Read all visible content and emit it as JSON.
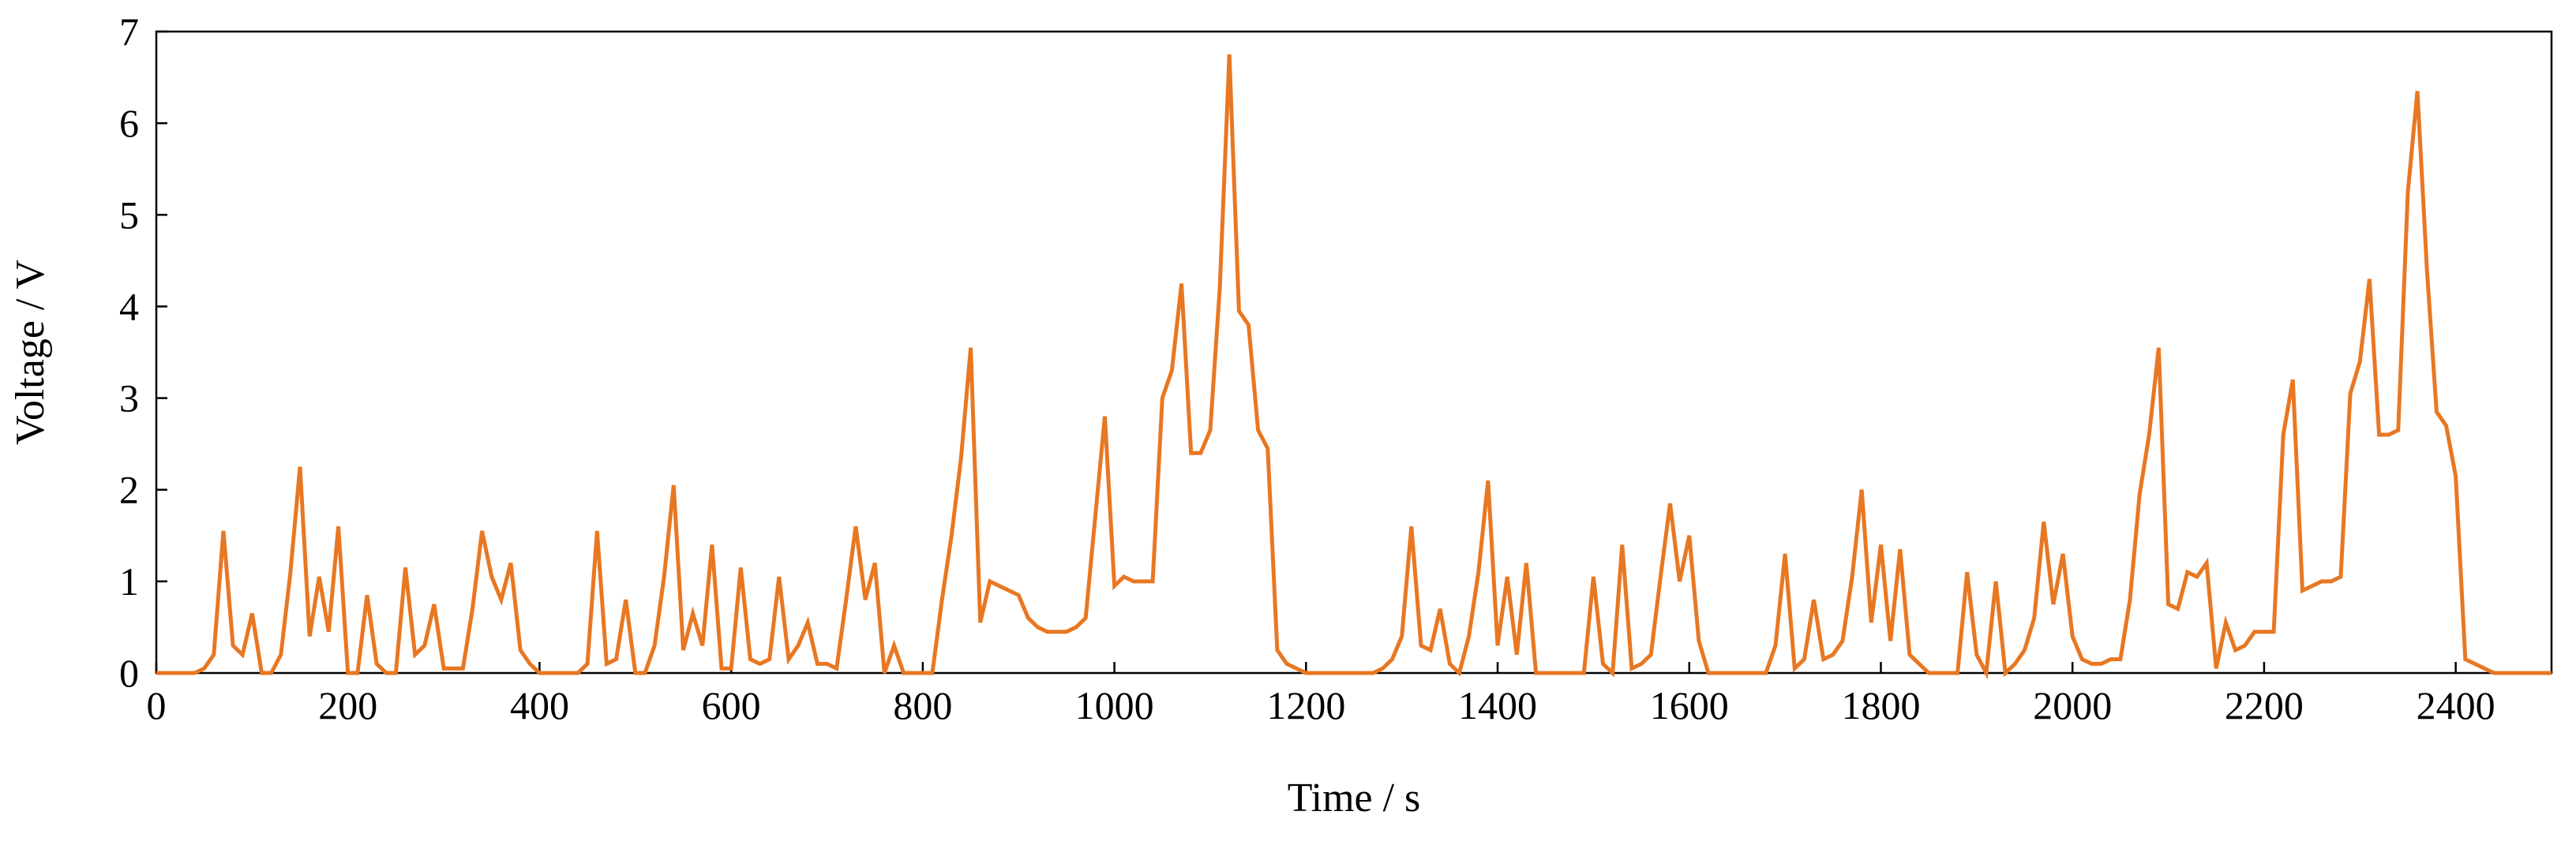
{
  "chart_data": {
    "type": "line",
    "title": "",
    "xlabel": "Time / s",
    "ylabel": "Voltage / V",
    "xlim": [
      0,
      2500
    ],
    "ylim": [
      0,
      7
    ],
    "xticks": [
      0,
      200,
      400,
      600,
      800,
      1000,
      1200,
      1400,
      1600,
      1800,
      2000,
      2200,
      2400
    ],
    "yticks": [
      0,
      1,
      2,
      3,
      4,
      5,
      6,
      7
    ],
    "grid": false,
    "legend": "none",
    "line_color": "#E87722",
    "series": [
      {
        "x": [
          0,
          10,
          20,
          30,
          40,
          50,
          60,
          70,
          80,
          90,
          100,
          110,
          120,
          130,
          140,
          150,
          160,
          170,
          180,
          190,
          200,
          210,
          220,
          230,
          240,
          250,
          260,
          270,
          280,
          290,
          300,
          310,
          320,
          330,
          340,
          350,
          360,
          370,
          380,
          390,
          400,
          410,
          420,
          430,
          440,
          450,
          460,
          470,
          480,
          490,
          500,
          510,
          520,
          530,
          540,
          550,
          560,
          570,
          580,
          590,
          600,
          610,
          620,
          630,
          640,
          650,
          660,
          670,
          680,
          690,
          700,
          710,
          720,
          730,
          740,
          750,
          760,
          770,
          780,
          790,
          800,
          810,
          820,
          830,
          840,
          850,
          860,
          870,
          880,
          890,
          900,
          910,
          920,
          930,
          940,
          950,
          960,
          970,
          980,
          990,
          1000,
          1010,
          1020,
          1030,
          1040,
          1050,
          1060,
          1070,
          1080,
          1090,
          1100,
          1110,
          1120,
          1130,
          1140,
          1150,
          1160,
          1170,
          1180,
          1190,
          1200,
          1210,
          1220,
          1230,
          1240,
          1250,
          1260,
          1270,
          1280,
          1290,
          1300,
          1310,
          1320,
          1330,
          1340,
          1350,
          1360,
          1370,
          1380,
          1390,
          1400,
          1410,
          1420,
          1430,
          1440,
          1450,
          1460,
          1470,
          1480,
          1490,
          1500,
          1510,
          1520,
          1530,
          1540,
          1550,
          1560,
          1570,
          1580,
          1590,
          1600,
          1610,
          1620,
          1630,
          1640,
          1650,
          1660,
          1670,
          1680,
          1690,
          1700,
          1710,
          1720,
          1730,
          1740,
          1750,
          1760,
          1770,
          1780,
          1790,
          1800,
          1810,
          1820,
          1830,
          1840,
          1850,
          1860,
          1870,
          1880,
          1890,
          1900,
          1910,
          1920,
          1930,
          1940,
          1950,
          1960,
          1970,
          1980,
          1990,
          2000,
          2010,
          2020,
          2030,
          2040,
          2050,
          2060,
          2070,
          2080,
          2090,
          2100,
          2110,
          2120,
          2130,
          2140,
          2150,
          2160,
          2170,
          2180,
          2190,
          2200,
          2210,
          2220,
          2230,
          2240,
          2250,
          2260,
          2270,
          2280,
          2290,
          2300,
          2310,
          2320,
          2330,
          2340,
          2350,
          2360,
          2370,
          2380,
          2390,
          2400,
          2410,
          2420,
          2430,
          2440,
          2450,
          2460,
          2470,
          2480,
          2490,
          2500
        ],
        "y": [
          0,
          0,
          0,
          0,
          0,
          0.05,
          0.2,
          1.55,
          0.3,
          0.2,
          0.65,
          0,
          0,
          0.2,
          1.1,
          2.25,
          0.4,
          1.05,
          0.45,
          1.6,
          0,
          0,
          0.85,
          0.1,
          0,
          0,
          1.15,
          0.2,
          0.3,
          0.75,
          0.05,
          0.05,
          0.05,
          0.7,
          1.55,
          1.05,
          0.8,
          1.2,
          0.25,
          0.1,
          0,
          0,
          0,
          0,
          0,
          0.1,
          1.55,
          0.1,
          0.15,
          0.8,
          0,
          0,
          0.3,
          1.05,
          2.05,
          0.25,
          0.65,
          0.3,
          1.4,
          0.05,
          0.05,
          1.15,
          0.15,
          0.1,
          0.15,
          1.05,
          0.15,
          0.3,
          0.55,
          0.1,
          0.1,
          0.05,
          0.8,
          1.6,
          0.8,
          1.2,
          0,
          0.3,
          0,
          0,
          0,
          0,
          0.8,
          1.5,
          2.35,
          3.55,
          0.55,
          1.0,
          0.95,
          0.9,
          0.85,
          0.6,
          0.5,
          0.45,
          0.45,
          0.45,
          0.5,
          0.6,
          1.7,
          2.8,
          0.95,
          1.05,
          1.0,
          1.0,
          1.0,
          3.0,
          3.3,
          4.25,
          2.4,
          2.4,
          2.65,
          4.2,
          6.75,
          3.95,
          3.8,
          2.65,
          2.45,
          0.25,
          0.1,
          0.05,
          0,
          0,
          0,
          0,
          0,
          0,
          0,
          0,
          0.05,
          0.15,
          0.4,
          1.6,
          0.3,
          0.25,
          0.7,
          0.1,
          0,
          0.4,
          1.1,
          2.1,
          0.3,
          1.05,
          0.2,
          1.2,
          0,
          0,
          0,
          0,
          0,
          0,
          1.05,
          0.1,
          0,
          1.4,
          0.05,
          0.1,
          0.2,
          1.05,
          1.85,
          1.0,
          1.5,
          0.35,
          0,
          0,
          0,
          0,
          0,
          0,
          0,
          0.3,
          1.3,
          0.05,
          0.15,
          0.8,
          0.15,
          0.2,
          0.35,
          1.05,
          2.0,
          0.55,
          1.4,
          0.35,
          1.35,
          0.2,
          0.1,
          0,
          0,
          0,
          0,
          1.1,
          0.2,
          0,
          1.0,
          0,
          0.1,
          0.25,
          0.6,
          1.65,
          0.75,
          1.3,
          0.4,
          0.15,
          0.1,
          0.1,
          0.15,
          0.15,
          0.8,
          1.95,
          2.6,
          3.55,
          0.75,
          0.7,
          1.1,
          1.05,
          1.2,
          0.05,
          0.55,
          0.25,
          0.3,
          0.45,
          0.45,
          0.45,
          2.6,
          3.2,
          0.9,
          0.95,
          1.0,
          1.0,
          1.05,
          3.05,
          3.4,
          4.3,
          2.6,
          2.6,
          2.65,
          5.25,
          6.35,
          4.4,
          2.85,
          2.7,
          2.15,
          0.15,
          0.1,
          0.05,
          0,
          0,
          0,
          0,
          0,
          0,
          0
        ]
      }
    ]
  }
}
